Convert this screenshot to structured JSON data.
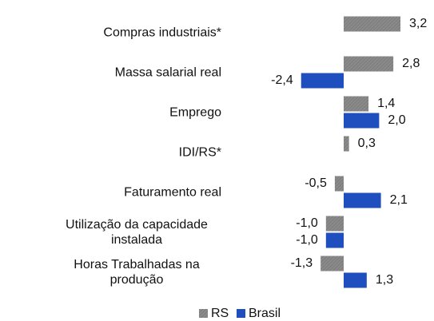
{
  "chart_data": {
    "type": "hbar",
    "categories": [
      "Compras industriais*",
      "Massa salarial real",
      "Emprego",
      "IDI/RS*",
      "Faturamento real",
      "Utilização da capacidade instalada",
      "Horas Trabalhadas na produção"
    ],
    "series": [
      {
        "name": "RS",
        "color": "#8a8a8a",
        "values": [
          3.2,
          2.8,
          1.4,
          0.3,
          -0.5,
          -1.0,
          -1.3
        ],
        "value_labels": [
          "3,2",
          "2,8",
          "1,4",
          "0,3",
          "-0,5",
          "-1,0",
          "-1,3"
        ]
      },
      {
        "name": "Brasil",
        "color": "#1f4fbf",
        "values": [
          null,
          -2.4,
          2.0,
          null,
          2.1,
          -1.0,
          1.3
        ],
        "value_labels": [
          null,
          "-2,4",
          "2,0",
          null,
          "2,1",
          "-1,0",
          "1,3"
        ]
      }
    ]
  }
}
